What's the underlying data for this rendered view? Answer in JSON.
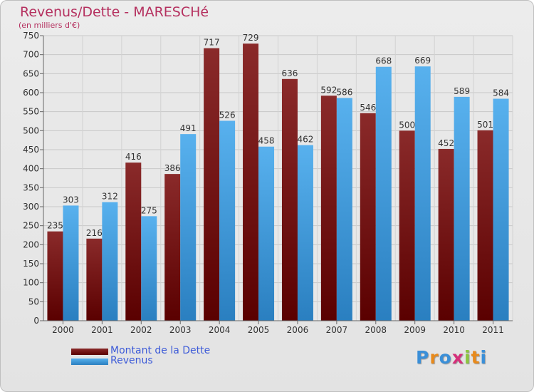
{
  "chart_data": {
    "type": "bar",
    "title": "Revenus/Dette - MARESCHé",
    "subtitle": "(en milliers d'€)",
    "categories": [
      "2000",
      "2001",
      "2002",
      "2003",
      "2004",
      "2005",
      "2006",
      "2007",
      "2008",
      "2009",
      "2010",
      "2011"
    ],
    "series": [
      {
        "name": "Montant de la Dette",
        "values": [
          235,
          216,
          416,
          386,
          717,
          729,
          636,
          592,
          546,
          500,
          452,
          501
        ],
        "color": "#7a1a1a"
      },
      {
        "name": "Revenus",
        "values": [
          303,
          312,
          275,
          491,
          526,
          458,
          462,
          586,
          668,
          669,
          589,
          584
        ],
        "color": "#4aa3e3"
      }
    ],
    "ylim": [
      0,
      750
    ],
    "yticks": [
      0,
      50,
      100,
      150,
      200,
      250,
      300,
      350,
      400,
      450,
      500,
      550,
      600,
      650,
      700,
      750
    ],
    "grid": true,
    "legend": "bottom-left"
  },
  "logo": {
    "letters": [
      "P",
      "r",
      "o",
      "x",
      "i",
      "t",
      "i"
    ],
    "colors": [
      "#3a8fd8",
      "#e88a1c",
      "#3a8fd8",
      "#d62f7a",
      "#8cc63f",
      "#e88a1c",
      "#3a8fd8"
    ]
  }
}
